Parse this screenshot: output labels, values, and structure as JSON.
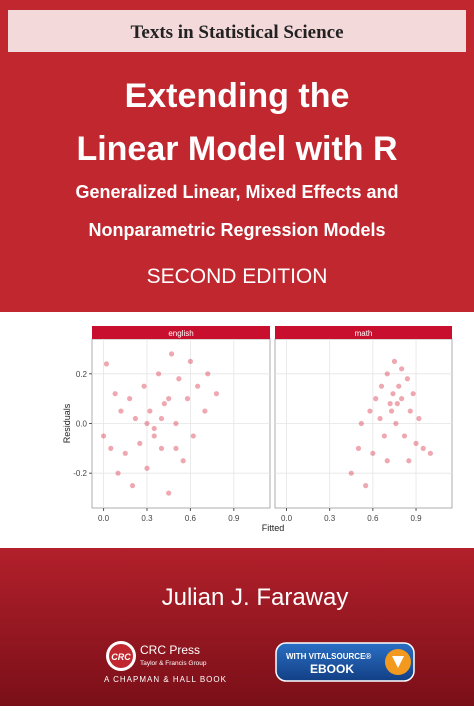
{
  "cover": {
    "series": "Texts in Statistical Science",
    "title_lines": [
      "Extending the",
      "Linear Model with R"
    ],
    "subtitle_lines": [
      "Generalized Linear, Mixed Effects and",
      "Nonparametric Regression Models"
    ],
    "edition": "SECOND EDITION",
    "author": "Julian J. Faraway",
    "logo": "CRC",
    "publisher": "CRC Press",
    "publisher_group": "Taylor & Francis Group",
    "imprint": "A CHAPMAN & HALL BOOK",
    "badge_top": "WITH VITALSOURCE®",
    "badge_bottom": "EBOOK"
  },
  "chart_data": [
    {
      "type": "scatter",
      "title": "english",
      "ylabel": "Residuals",
      "color": "#d7263d",
      "x": [
        0.0,
        0.02,
        0.05,
        0.08,
        0.1,
        0.12,
        0.15,
        0.18,
        0.2,
        0.22,
        0.25,
        0.28,
        0.3,
        0.32,
        0.35,
        0.38,
        0.4,
        0.42,
        0.45,
        0.47,
        0.5,
        0.52,
        0.55,
        0.58,
        0.6,
        0.62,
        0.65,
        0.7,
        0.72,
        0.78,
        0.35,
        0.4,
        0.3,
        0.45,
        0.5
      ],
      "y": [
        -0.05,
        0.24,
        -0.1,
        0.12,
        -0.2,
        0.05,
        -0.12,
        0.1,
        -0.25,
        0.02,
        -0.08,
        0.15,
        -0.18,
        0.05,
        -0.02,
        0.2,
        -0.1,
        0.08,
        -0.28,
        0.28,
        0.0,
        0.18,
        -0.15,
        0.1,
        0.25,
        -0.05,
        0.15,
        0.05,
        0.2,
        0.12,
        -0.05,
        0.02,
        0.0,
        0.1,
        -0.1
      ],
      "xlim": [
        -0.08,
        1.15
      ],
      "xticks": [
        {
          "value": 0,
          "label": "0.0"
        },
        0.3,
        0.6,
        0.9
      ],
      "ylim": [
        -0.34,
        0.34
      ],
      "yticks": [
        -0.2,
        {
          "value": 0,
          "label": "0.0"
        },
        0.2
      ],
      "grid": true
    },
    {
      "type": "scatter",
      "title": "math",
      "xlabel": "Fitted",
      "color": "#d7263d",
      "x": [
        0.45,
        0.5,
        0.52,
        0.55,
        0.58,
        0.6,
        0.62,
        0.65,
        0.66,
        0.68,
        0.7,
        0.72,
        0.74,
        0.75,
        0.76,
        0.78,
        0.8,
        0.82,
        0.84,
        0.86,
        0.88,
        0.9,
        0.92,
        0.95,
        1.0,
        0.7,
        0.8,
        0.73,
        0.77,
        0.85
      ],
      "y": [
        -0.2,
        -0.1,
        0.0,
        -0.25,
        0.05,
        -0.12,
        0.1,
        0.02,
        0.15,
        -0.05,
        0.2,
        0.08,
        0.12,
        0.25,
        0.0,
        0.15,
        0.1,
        -0.05,
        0.18,
        0.05,
        0.12,
        -0.08,
        0.02,
        -0.1,
        -0.12,
        -0.15,
        0.22,
        0.05,
        0.08,
        -0.15
      ],
      "xlim": [
        -0.08,
        1.15
      ],
      "xticks": [
        {
          "value": 0,
          "label": "0.0"
        },
        0.3,
        0.6,
        0.9
      ],
      "ylim": [
        -0.34,
        0.34
      ],
      "grid": true
    }
  ]
}
